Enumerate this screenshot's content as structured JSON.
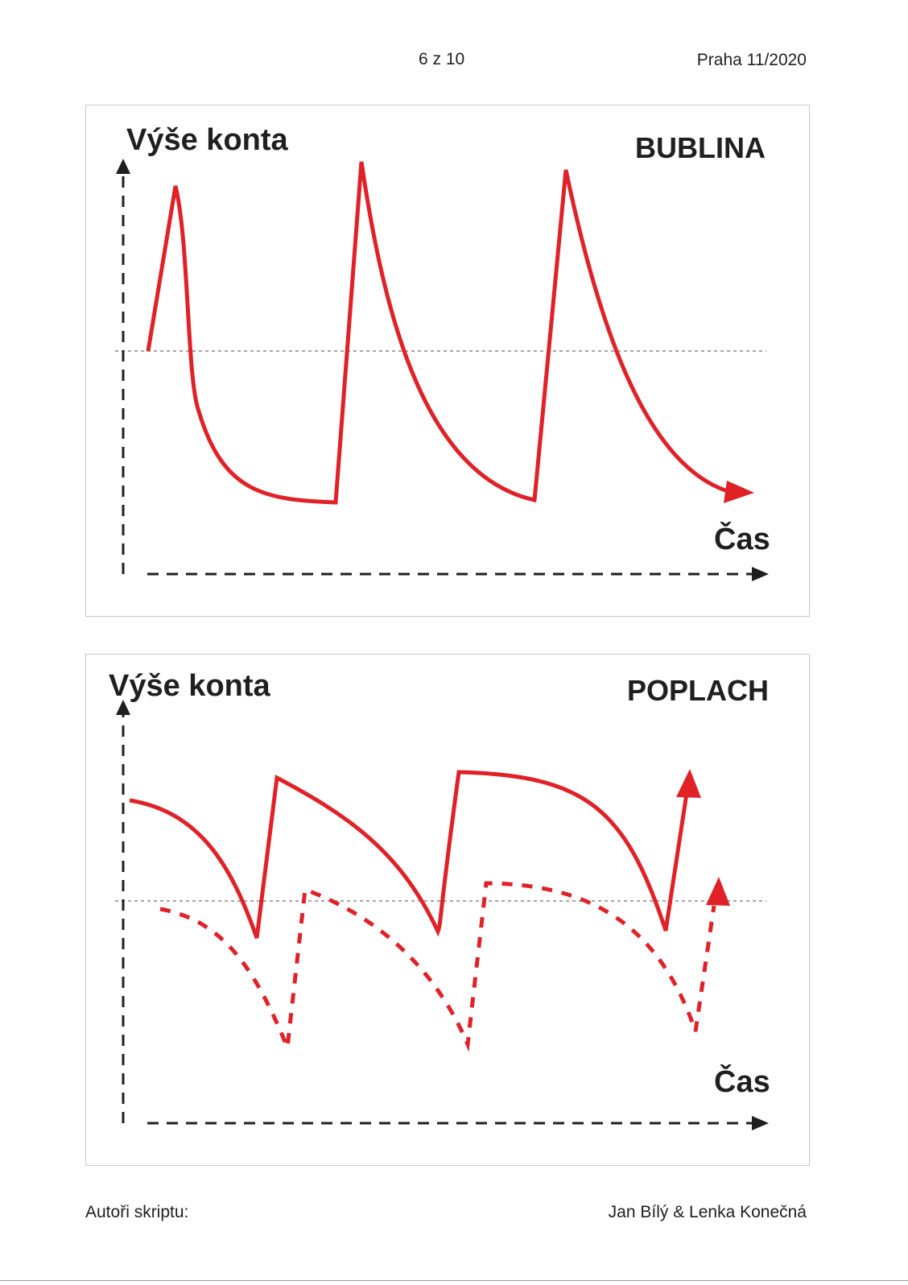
{
  "header": {
    "page_number": "6 z 10",
    "place_date": "Praha 11/2020"
  },
  "panels": [
    {
      "label": "BUBLINA",
      "y_title": "Výše konta",
      "x_title": "Čas"
    },
    {
      "label": "POPLACH",
      "y_title": "Výše konta",
      "x_title": "Čas"
    }
  ],
  "footer": {
    "left": "Autoři skriptu:",
    "right": "Jan Bílý & Lenka Konečná"
  },
  "colors": {
    "curve": "#e02127",
    "axis": "#1f1f1f",
    "reference_line": "#a6a6a6"
  }
}
